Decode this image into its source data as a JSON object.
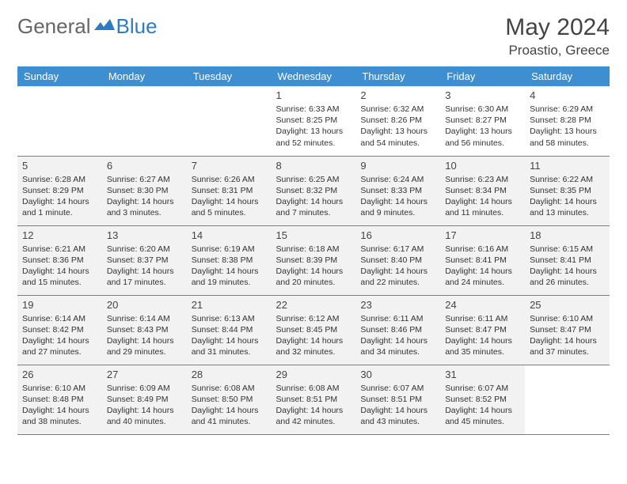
{
  "brand": {
    "part1": "General",
    "part2": "Blue"
  },
  "title": "May 2024",
  "location": "Proastio, Greece",
  "colors": {
    "header_bg": "#3d8fd1",
    "header_text": "#ffffff",
    "shade_bg": "#f2f2f2",
    "border": "#3d8fd1",
    "brand_blue": "#2b7cc4",
    "text": "#333333"
  },
  "dayHeaders": [
    "Sunday",
    "Monday",
    "Tuesday",
    "Wednesday",
    "Thursday",
    "Friday",
    "Saturday"
  ],
  "weeks": [
    {
      "shade": false,
      "days": [
        {
          "n": "",
          "sr": "",
          "ss": "",
          "dl": ""
        },
        {
          "n": "",
          "sr": "",
          "ss": "",
          "dl": ""
        },
        {
          "n": "",
          "sr": "",
          "ss": "",
          "dl": ""
        },
        {
          "n": "1",
          "sr": "Sunrise: 6:33 AM",
          "ss": "Sunset: 8:25 PM",
          "dl": "Daylight: 13 hours and 52 minutes."
        },
        {
          "n": "2",
          "sr": "Sunrise: 6:32 AM",
          "ss": "Sunset: 8:26 PM",
          "dl": "Daylight: 13 hours and 54 minutes."
        },
        {
          "n": "3",
          "sr": "Sunrise: 6:30 AM",
          "ss": "Sunset: 8:27 PM",
          "dl": "Daylight: 13 hours and 56 minutes."
        },
        {
          "n": "4",
          "sr": "Sunrise: 6:29 AM",
          "ss": "Sunset: 8:28 PM",
          "dl": "Daylight: 13 hours and 58 minutes."
        }
      ]
    },
    {
      "shade": true,
      "days": [
        {
          "n": "5",
          "sr": "Sunrise: 6:28 AM",
          "ss": "Sunset: 8:29 PM",
          "dl": "Daylight: 14 hours and 1 minute."
        },
        {
          "n": "6",
          "sr": "Sunrise: 6:27 AM",
          "ss": "Sunset: 8:30 PM",
          "dl": "Daylight: 14 hours and 3 minutes."
        },
        {
          "n": "7",
          "sr": "Sunrise: 6:26 AM",
          "ss": "Sunset: 8:31 PM",
          "dl": "Daylight: 14 hours and 5 minutes."
        },
        {
          "n": "8",
          "sr": "Sunrise: 6:25 AM",
          "ss": "Sunset: 8:32 PM",
          "dl": "Daylight: 14 hours and 7 minutes."
        },
        {
          "n": "9",
          "sr": "Sunrise: 6:24 AM",
          "ss": "Sunset: 8:33 PM",
          "dl": "Daylight: 14 hours and 9 minutes."
        },
        {
          "n": "10",
          "sr": "Sunrise: 6:23 AM",
          "ss": "Sunset: 8:34 PM",
          "dl": "Daylight: 14 hours and 11 minutes."
        },
        {
          "n": "11",
          "sr": "Sunrise: 6:22 AM",
          "ss": "Sunset: 8:35 PM",
          "dl": "Daylight: 14 hours and 13 minutes."
        }
      ]
    },
    {
      "shade": true,
      "days": [
        {
          "n": "12",
          "sr": "Sunrise: 6:21 AM",
          "ss": "Sunset: 8:36 PM",
          "dl": "Daylight: 14 hours and 15 minutes."
        },
        {
          "n": "13",
          "sr": "Sunrise: 6:20 AM",
          "ss": "Sunset: 8:37 PM",
          "dl": "Daylight: 14 hours and 17 minutes."
        },
        {
          "n": "14",
          "sr": "Sunrise: 6:19 AM",
          "ss": "Sunset: 8:38 PM",
          "dl": "Daylight: 14 hours and 19 minutes."
        },
        {
          "n": "15",
          "sr": "Sunrise: 6:18 AM",
          "ss": "Sunset: 8:39 PM",
          "dl": "Daylight: 14 hours and 20 minutes."
        },
        {
          "n": "16",
          "sr": "Sunrise: 6:17 AM",
          "ss": "Sunset: 8:40 PM",
          "dl": "Daylight: 14 hours and 22 minutes."
        },
        {
          "n": "17",
          "sr": "Sunrise: 6:16 AM",
          "ss": "Sunset: 8:41 PM",
          "dl": "Daylight: 14 hours and 24 minutes."
        },
        {
          "n": "18",
          "sr": "Sunrise: 6:15 AM",
          "ss": "Sunset: 8:41 PM",
          "dl": "Daylight: 14 hours and 26 minutes."
        }
      ]
    },
    {
      "shade": true,
      "days": [
        {
          "n": "19",
          "sr": "Sunrise: 6:14 AM",
          "ss": "Sunset: 8:42 PM",
          "dl": "Daylight: 14 hours and 27 minutes."
        },
        {
          "n": "20",
          "sr": "Sunrise: 6:14 AM",
          "ss": "Sunset: 8:43 PM",
          "dl": "Daylight: 14 hours and 29 minutes."
        },
        {
          "n": "21",
          "sr": "Sunrise: 6:13 AM",
          "ss": "Sunset: 8:44 PM",
          "dl": "Daylight: 14 hours and 31 minutes."
        },
        {
          "n": "22",
          "sr": "Sunrise: 6:12 AM",
          "ss": "Sunset: 8:45 PM",
          "dl": "Daylight: 14 hours and 32 minutes."
        },
        {
          "n": "23",
          "sr": "Sunrise: 6:11 AM",
          "ss": "Sunset: 8:46 PM",
          "dl": "Daylight: 14 hours and 34 minutes."
        },
        {
          "n": "24",
          "sr": "Sunrise: 6:11 AM",
          "ss": "Sunset: 8:47 PM",
          "dl": "Daylight: 14 hours and 35 minutes."
        },
        {
          "n": "25",
          "sr": "Sunrise: 6:10 AM",
          "ss": "Sunset: 8:47 PM",
          "dl": "Daylight: 14 hours and 37 minutes."
        }
      ]
    },
    {
      "shade": true,
      "days": [
        {
          "n": "26",
          "sr": "Sunrise: 6:10 AM",
          "ss": "Sunset: 8:48 PM",
          "dl": "Daylight: 14 hours and 38 minutes."
        },
        {
          "n": "27",
          "sr": "Sunrise: 6:09 AM",
          "ss": "Sunset: 8:49 PM",
          "dl": "Daylight: 14 hours and 40 minutes."
        },
        {
          "n": "28",
          "sr": "Sunrise: 6:08 AM",
          "ss": "Sunset: 8:50 PM",
          "dl": "Daylight: 14 hours and 41 minutes."
        },
        {
          "n": "29",
          "sr": "Sunrise: 6:08 AM",
          "ss": "Sunset: 8:51 PM",
          "dl": "Daylight: 14 hours and 42 minutes."
        },
        {
          "n": "30",
          "sr": "Sunrise: 6:07 AM",
          "ss": "Sunset: 8:51 PM",
          "dl": "Daylight: 14 hours and 43 minutes."
        },
        {
          "n": "31",
          "sr": "Sunrise: 6:07 AM",
          "ss": "Sunset: 8:52 PM",
          "dl": "Daylight: 14 hours and 45 minutes."
        },
        {
          "n": "",
          "sr": "",
          "ss": "",
          "dl": ""
        }
      ]
    }
  ]
}
